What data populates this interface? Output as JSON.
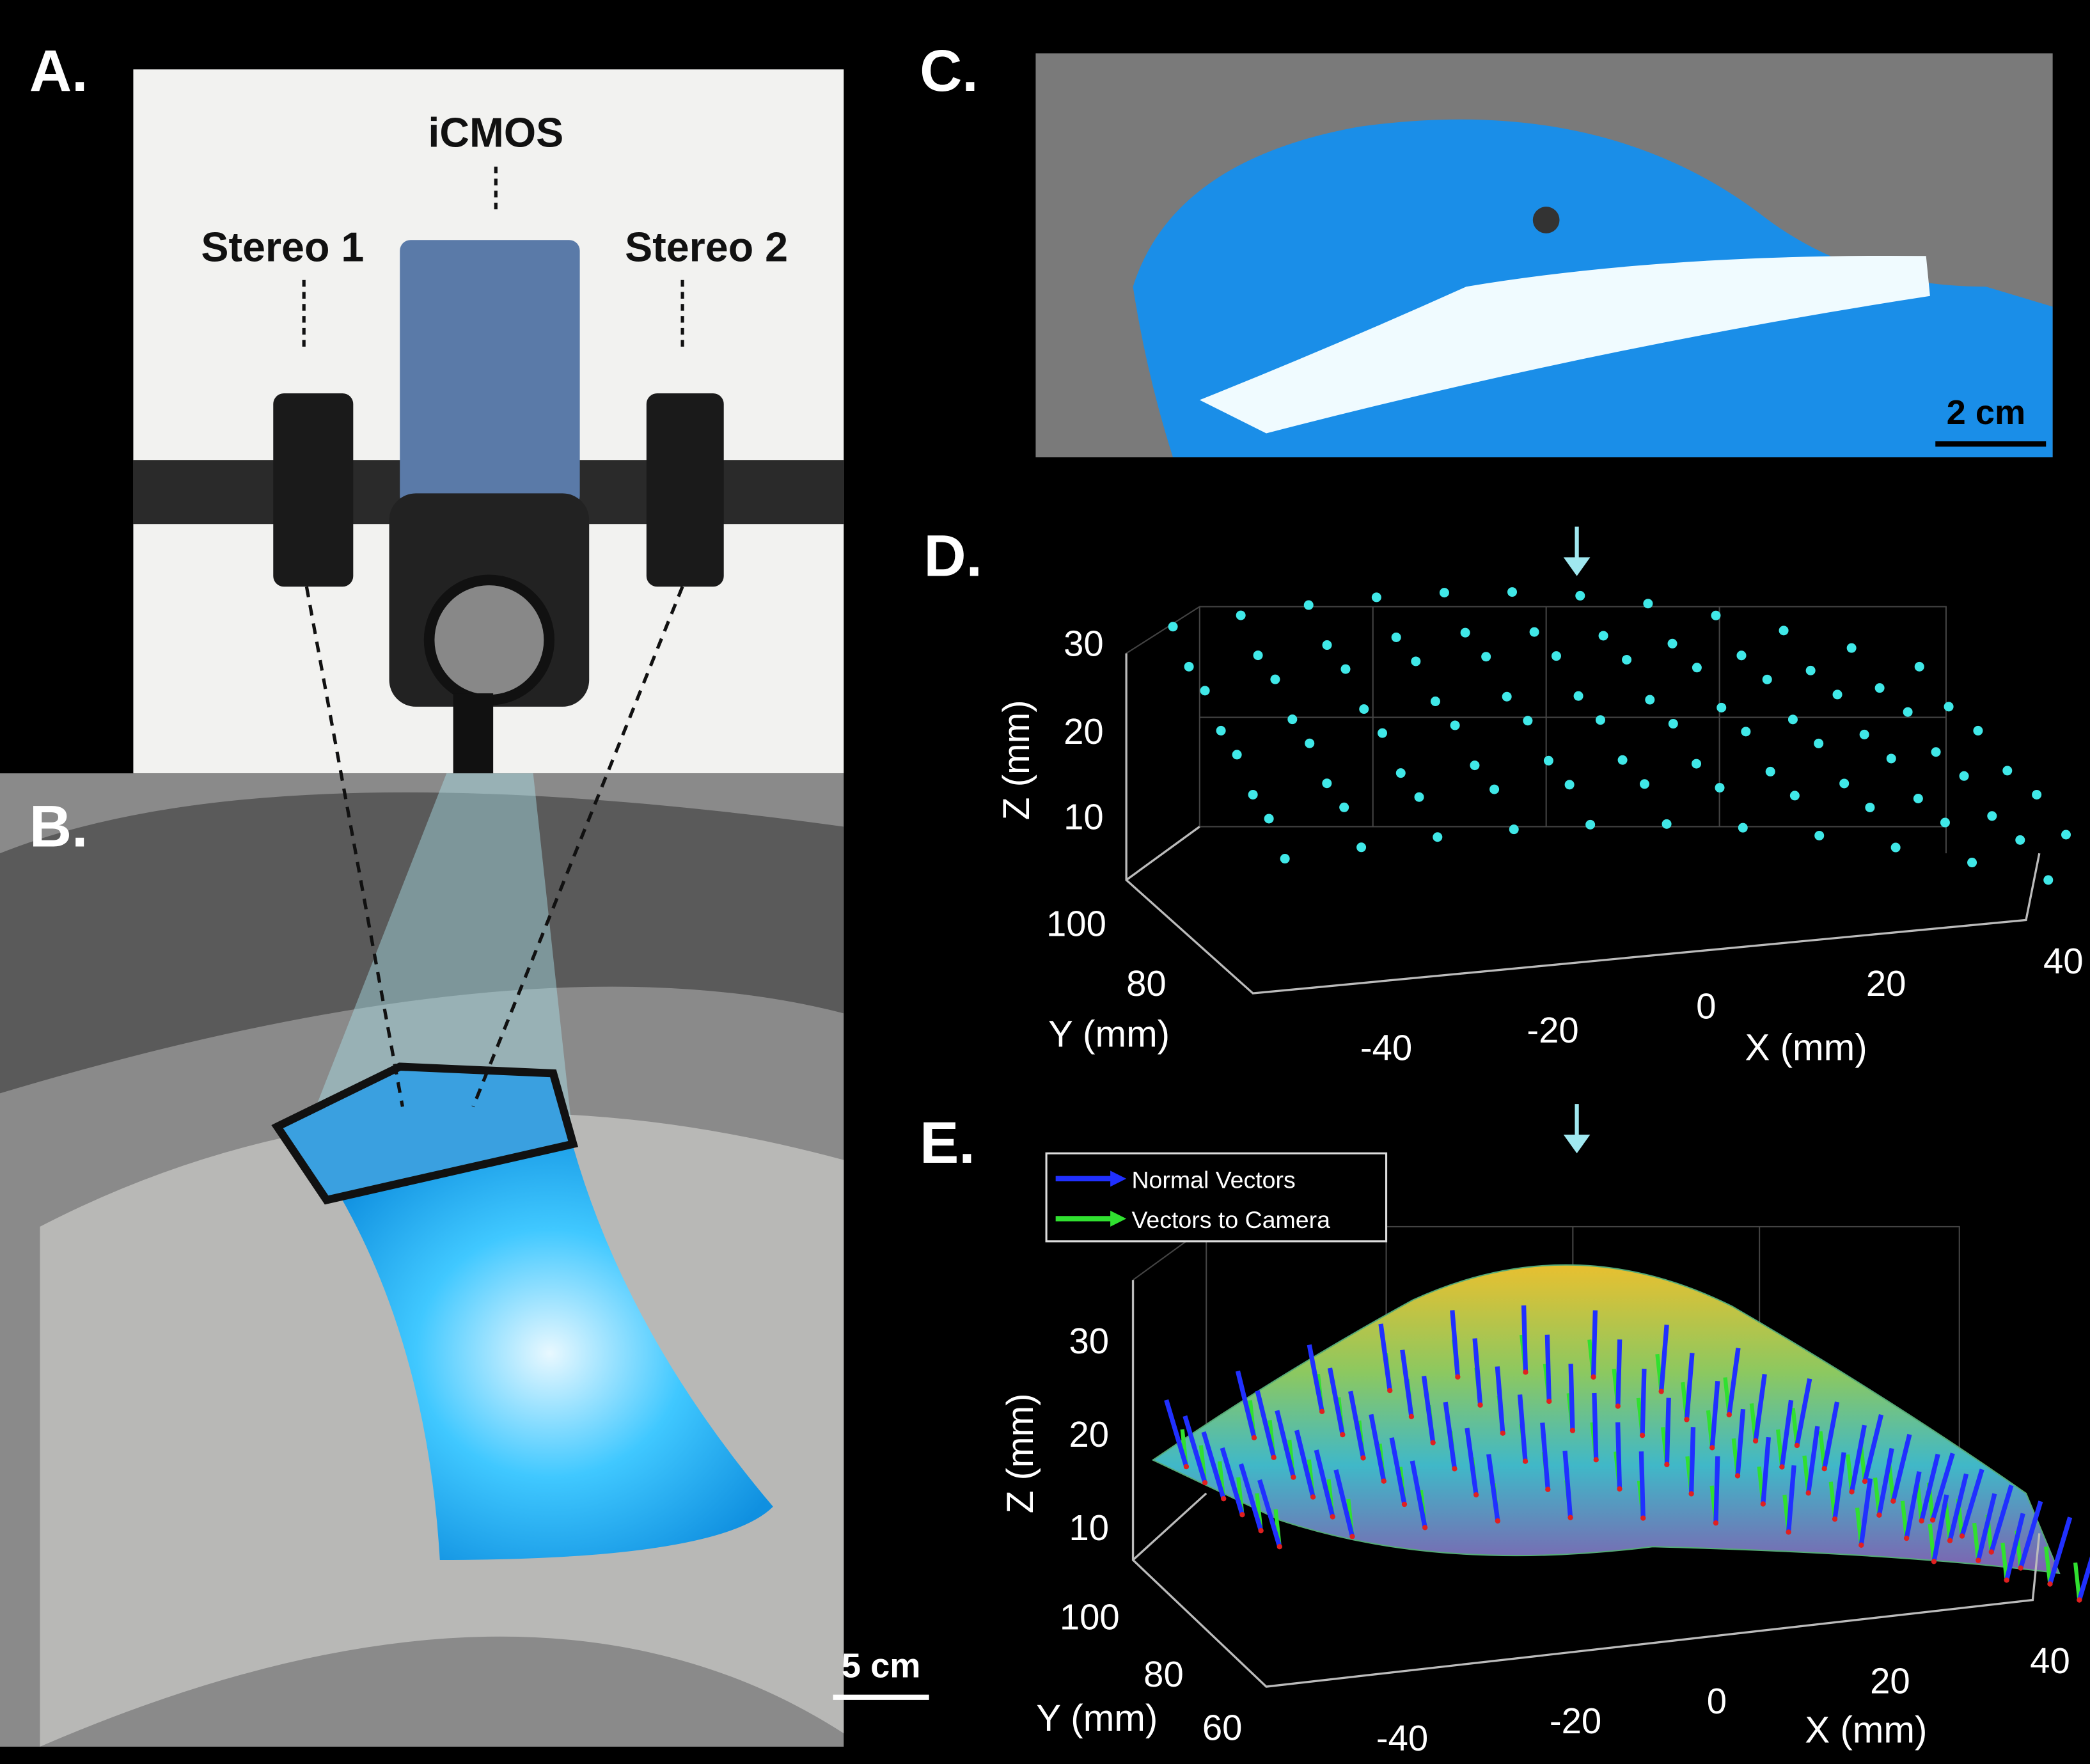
{
  "panels": [
    {
      "label": "A.",
      "annotations": [
        "iCMOS",
        "Stereo 1",
        "Stereo 2"
      ]
    },
    {
      "label": "B.",
      "scale_bar": "5 cm"
    },
    {
      "label": "C.",
      "scale_bar": "2 cm"
    },
    {
      "label": "D.",
      "axes": {
        "z_label": "Z (mm)",
        "y_label": "Y (mm)",
        "x_label": "X (mm)",
        "z_ticks": [
          "30",
          "20",
          "10"
        ],
        "y_ticks": [
          "100",
          "80"
        ],
        "x_ticks": [
          "-40",
          "-20",
          "0",
          "20",
          "40"
        ]
      }
    },
    {
      "label": "E.",
      "legend": [
        "Normal Vectors",
        "Vectors to Camera"
      ],
      "axes": {
        "z_label": "Z (mm)",
        "y_label": "Y (mm)",
        "x_label": "X (mm)",
        "z_ticks": [
          "30",
          "20",
          "10"
        ],
        "y_ticks": [
          "100",
          "80",
          "60"
        ],
        "x_ticks": [
          "-40",
          "-20",
          "0",
          "20",
          "40"
        ]
      }
    }
  ]
}
